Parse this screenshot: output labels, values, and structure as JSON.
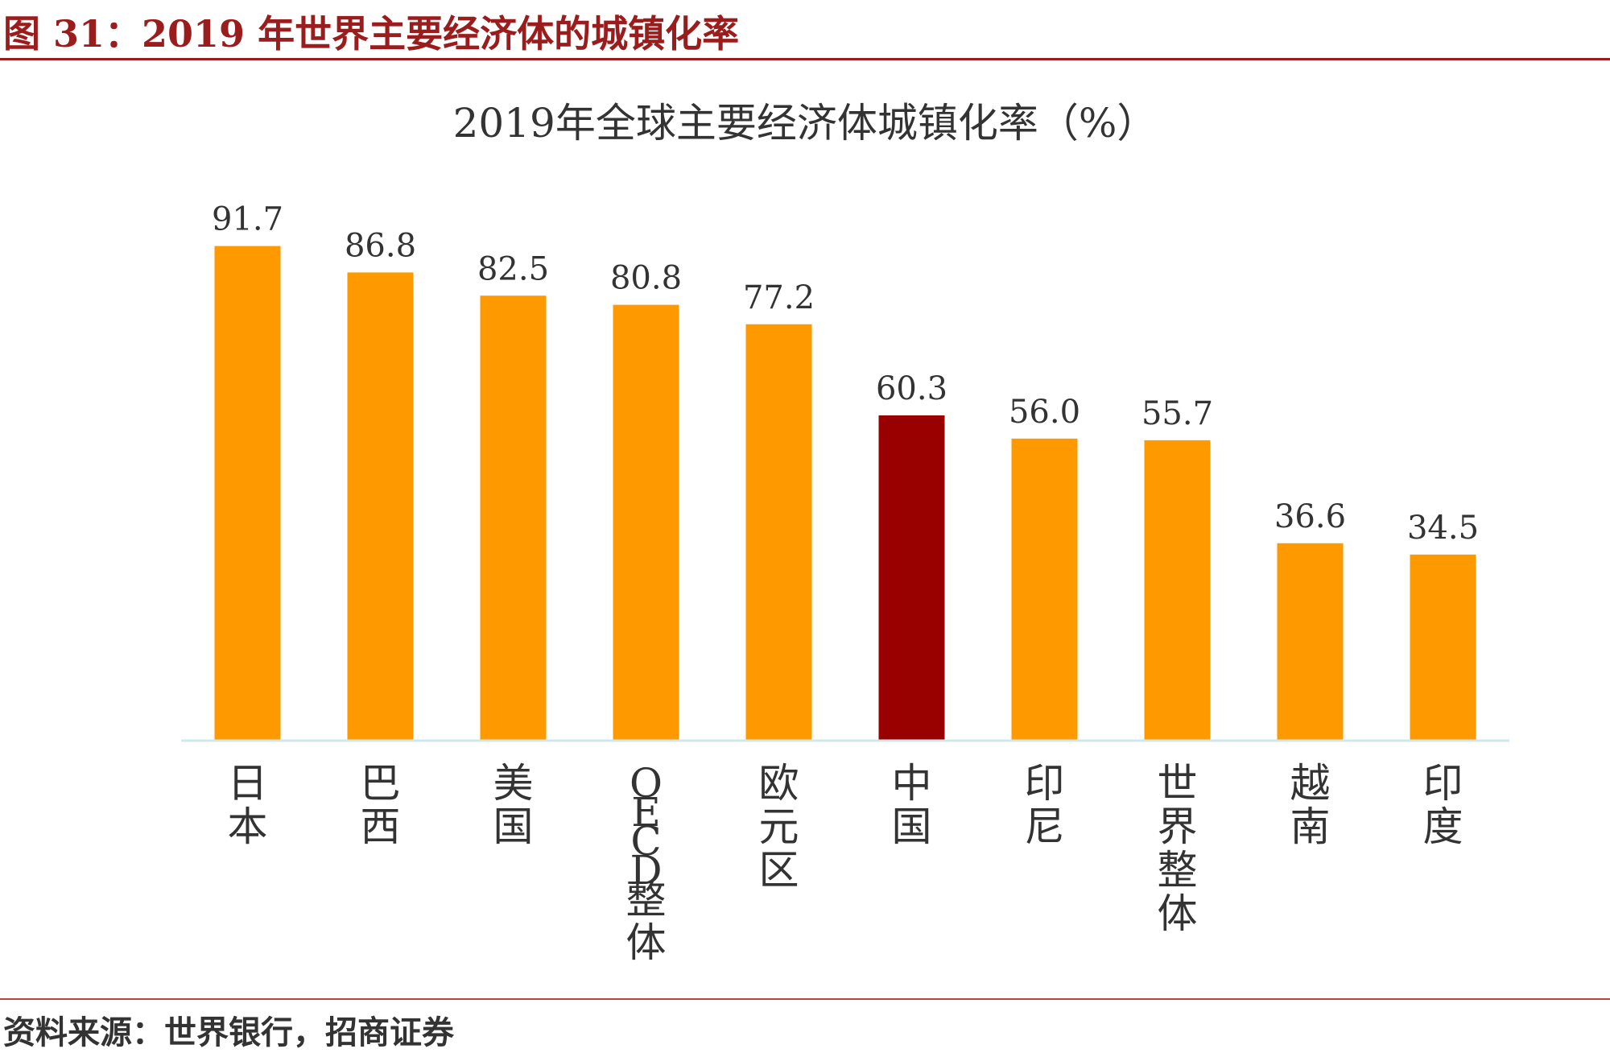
{
  "figure": {
    "title": "图 31：2019 年世界主要经济体的城镇化率",
    "source": "资料来源：世界银行，招商证券"
  },
  "chart_data": {
    "type": "bar",
    "title": "2019年全球主要经济体城镇化率（%）",
    "categories": [
      "日本",
      "巴西",
      "美国",
      "OECD整体",
      "欧元区",
      "中国",
      "印尼",
      "世界整体",
      "越南",
      "印度"
    ],
    "values": [
      91.7,
      86.8,
      82.5,
      80.8,
      77.2,
      60.3,
      56.0,
      55.7,
      36.6,
      34.5
    ],
    "value_labels": [
      "91.7",
      "86.8",
      "82.5",
      "80.8",
      "77.2",
      "60.3",
      "56.0",
      "55.7",
      "36.6",
      "34.5"
    ],
    "highlight_category": "中国",
    "ylim": [
      0,
      100
    ],
    "grid": false,
    "legend": "none",
    "colors": {
      "bar": "#ff9900",
      "highlight": "#990000",
      "axis": "#cfe8ee",
      "text": "#333333"
    }
  }
}
